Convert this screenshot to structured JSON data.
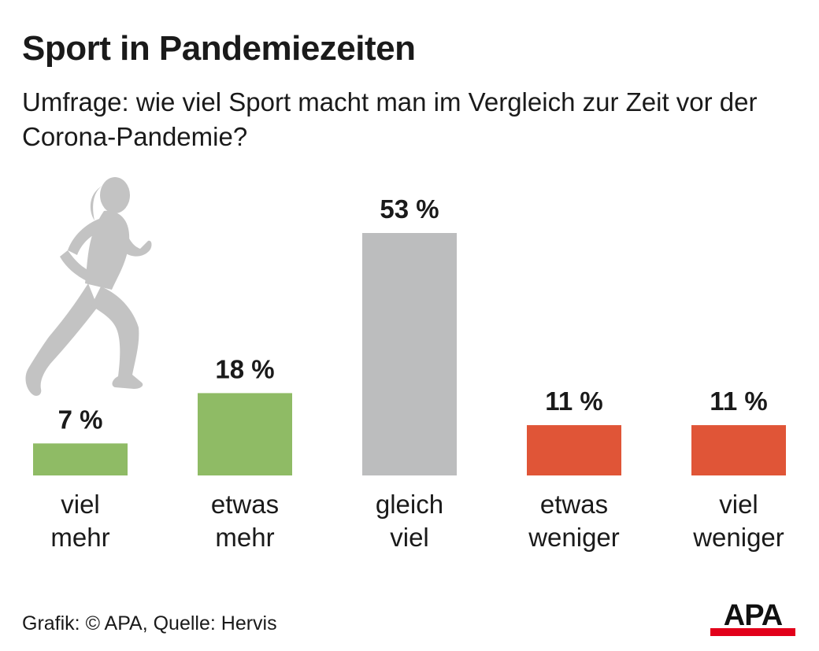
{
  "title": "Sport in Pandemiezeiten",
  "subtitle": "Umfrage: wie viel Sport macht man im Vergleich zur Zeit vor der Corona-Pandemie?",
  "footer": "Grafik: © APA, Quelle: Hervis",
  "logo_text": "APA",
  "colors": {
    "green": "#8fbb65",
    "gray": "#bcbdbe",
    "red": "#e05537",
    "icon": "#c3c3c3",
    "logo_red": "#e2001a"
  },
  "icon": "runner-icon",
  "chart_data": {
    "type": "bar",
    "categories": [
      [
        "viel",
        "mehr"
      ],
      [
        "etwas",
        "mehr"
      ],
      [
        "gleich",
        "viel"
      ],
      [
        "etwas",
        "weniger"
      ],
      [
        "viel",
        "weniger"
      ]
    ],
    "values": [
      7,
      18,
      53,
      11,
      11
    ],
    "value_labels": [
      "7 %",
      "18 %",
      "53 %",
      "11 %",
      "11 %"
    ],
    "bar_colors": [
      "#8fbb65",
      "#8fbb65",
      "#bcbdbe",
      "#e05537",
      "#e05537"
    ],
    "unit": "%",
    "ylim": [
      0,
      53
    ],
    "grid": false,
    "legend": "none"
  }
}
